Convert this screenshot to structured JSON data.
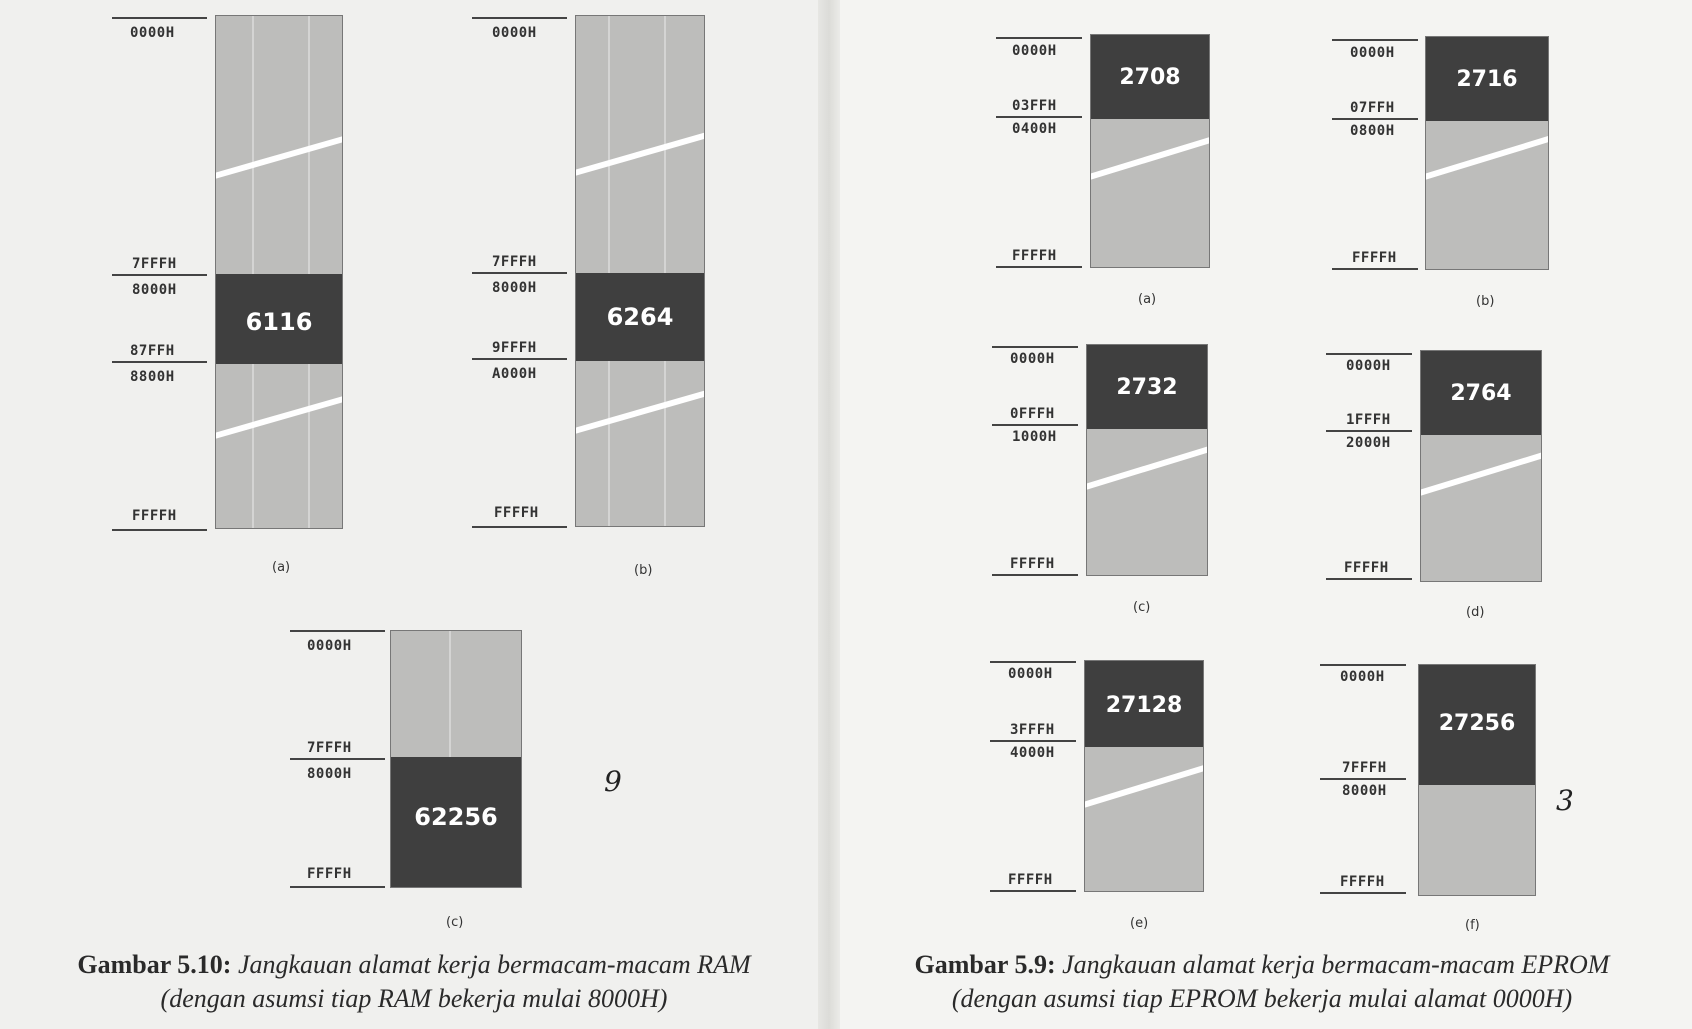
{
  "ram_figure": {
    "caption_number": "Gambar 5.10:",
    "caption_line1": "Jangkauan alamat kerja bermacam-macam RAM",
    "caption_line2": "(dengan asumsi tiap RAM bekerja mulai 8000H)",
    "maps": [
      {
        "chip": "6116",
        "sub": "(a)",
        "addresses": [
          "0000H",
          "7FFFH",
          "8000H",
          "87FFH",
          "8800H",
          "FFFFH"
        ]
      },
      {
        "chip": "6264",
        "sub": "(b)",
        "addresses": [
          "0000H",
          "7FFFH",
          "8000H",
          "9FFFH",
          "A000H",
          "FFFFH"
        ]
      },
      {
        "chip": "62256",
        "sub": "(c)",
        "addresses": [
          "0000H",
          "7FFFH",
          "8000H",
          "FFFFH"
        ]
      }
    ]
  },
  "eprom_figure": {
    "caption_number": "Gambar 5.9:",
    "caption_line1": "Jangkauan alamat kerja bermacam-macam EPROM",
    "caption_line2": "(dengan asumsi tiap EPROM bekerja mulai alamat 0000H)",
    "maps": [
      {
        "chip": "2708",
        "sub": "(a)",
        "addresses": [
          "0000H",
          "03FFH",
          "0400H",
          "FFFFH"
        ]
      },
      {
        "chip": "2716",
        "sub": "(b)",
        "addresses": [
          "0000H",
          "07FFH",
          "0800H",
          "FFFFH"
        ]
      },
      {
        "chip": "2732",
        "sub": "(c)",
        "addresses": [
          "0000H",
          "0FFFH",
          "1000H",
          "FFFFH"
        ]
      },
      {
        "chip": "2764",
        "sub": "(d)",
        "addresses": [
          "0000H",
          "1FFFH",
          "2000H",
          "FFFFH"
        ]
      },
      {
        "chip": "27128",
        "sub": "(e)",
        "addresses": [
          "0000H",
          "3FFFH",
          "4000H",
          "FFFFH"
        ]
      },
      {
        "chip": "27256",
        "sub": "(f)",
        "addresses": [
          "0000H",
          "7FFFH",
          "8000H",
          "FFFFH"
        ]
      }
    ]
  },
  "handwritten": {
    "left_mark": "9",
    "right_mark": "3"
  }
}
